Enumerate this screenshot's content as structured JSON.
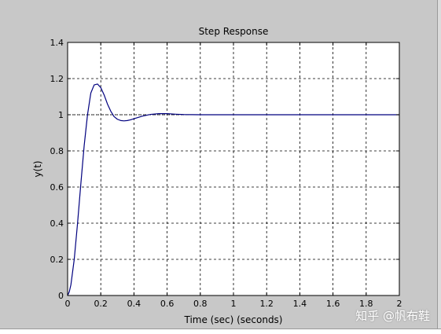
{
  "chart_data": {
    "type": "line",
    "title": "Step Response",
    "xlabel": "Time (sec) (seconds)",
    "ylabel": "y(t)",
    "xlim": [
      0,
      2
    ],
    "ylim": [
      0,
      1.4
    ],
    "xticks": [
      0,
      0.2,
      0.4,
      0.6,
      0.8,
      1,
      1.2,
      1.4,
      1.6,
      1.8,
      2
    ],
    "yticks": [
      0,
      0.2,
      0.4,
      0.6,
      0.8,
      1,
      1.2,
      1.4
    ],
    "xtick_labels": [
      "0",
      "0.2",
      "0.4",
      "0.6",
      "0.8",
      "1",
      "1.2",
      "1.4",
      "1.6",
      "1.8",
      "2"
    ],
    "ytick_labels": [
      "0",
      "0.2",
      "0.4",
      "0.6",
      "0.8",
      "1",
      "1.2",
      "1.4"
    ],
    "grid": true,
    "series": [
      {
        "color": "#00007f",
        "x": [
          0,
          0.01,
          0.02,
          0.04,
          0.06,
          0.08,
          0.1,
          0.12,
          0.14,
          0.16,
          0.18,
          0.2,
          0.22,
          0.24,
          0.26,
          0.28,
          0.3,
          0.32,
          0.34,
          0.36,
          0.38,
          0.4,
          0.45,
          0.5,
          0.55,
          0.6,
          0.65,
          0.7,
          0.8,
          0.9,
          1.0,
          1.2,
          1.4,
          1.6,
          1.8,
          2.0
        ],
        "values": [
          0,
          0.02,
          0.06,
          0.2,
          0.4,
          0.62,
          0.83,
          1.0,
          1.12,
          1.165,
          1.17,
          1.15,
          1.11,
          1.06,
          1.02,
          0.99,
          0.975,
          0.968,
          0.966,
          0.968,
          0.972,
          0.978,
          0.992,
          1.002,
          1.006,
          1.006,
          1.003,
          1.001,
          1.0,
          1.0,
          1.0,
          1.0,
          1.0,
          1.0,
          1.0,
          1.0
        ]
      }
    ],
    "reference_line": {
      "y": 1,
      "color": "#000000",
      "style": "dotted"
    }
  },
  "watermark_text": "知乎 @帆布鞋"
}
